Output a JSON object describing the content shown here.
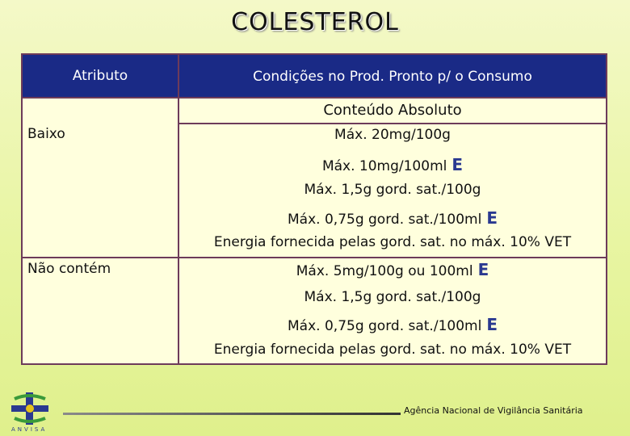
{
  "title": "COLESTEROL",
  "table": {
    "header_attr": "Atributo",
    "header_cond": "Condições no Prod. Pronto p/ o Consumo",
    "subheader": "Conteúdo Absoluto",
    "rows": [
      {
        "label": "Baixo",
        "lines": [
          {
            "text": "Máx. 20mg/100g",
            "suffix": ""
          },
          {
            "text": "Máx. 10mg/100ml",
            "suffix": "E"
          },
          {
            "text": "Máx. 1,5g gord. sat./100g",
            "suffix": ""
          },
          {
            "text": "Máx. 0,75g gord. sat./100ml",
            "suffix": "E"
          },
          {
            "text": "Energia fornecida pelas gord. sat. no máx. 10% VET",
            "suffix": ""
          }
        ]
      },
      {
        "label": "Não contém",
        "lines": [
          {
            "text": "Máx. 5mg/100g ou 100ml",
            "suffix": "E"
          },
          {
            "text": "Máx. 1,5g gord. sat./100g",
            "suffix": ""
          },
          {
            "text": "Máx. 0,75g gord. sat./100ml",
            "suffix": "E"
          },
          {
            "text": "Energia fornecida pelas gord. sat. no máx. 10% VET",
            "suffix": ""
          }
        ]
      }
    ]
  },
  "footer": {
    "agency": "Agência Nacional de Vigilância Sanitária",
    "logo_text": "ANVISA",
    "logo_icon": "anvisa-cross-icon"
  }
}
